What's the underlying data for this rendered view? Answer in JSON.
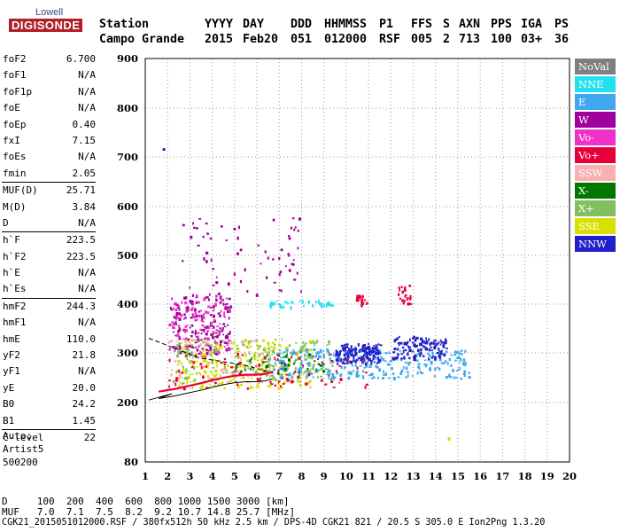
{
  "logo": {
    "top": "Lowell",
    "bottom": "DIGISONDE"
  },
  "header": {
    "row1": [
      "Station",
      "YYYY",
      "DAY",
      "DDD",
      "HHMMSS",
      "P1",
      "FFS",
      "S",
      "AXN",
      "PPS",
      "IGA",
      "PS"
    ],
    "row2": [
      "Campo Grande",
      "2015",
      "Feb20",
      "051",
      "012000",
      "RSF",
      "005",
      "2",
      "713",
      "100",
      "03+",
      "36"
    ]
  },
  "params": [
    {
      "k": "foF2",
      "v": "6.700"
    },
    {
      "k": "foF1",
      "v": "N/A"
    },
    {
      "k": "foF1p",
      "v": "N/A"
    },
    {
      "k": "foE",
      "v": "N/A"
    },
    {
      "k": "foEp",
      "v": "0.40"
    },
    {
      "k": "fxI",
      "v": "7.15"
    },
    {
      "k": "foEs",
      "v": "N/A"
    },
    {
      "k": "fmin",
      "v": "2.05"
    },
    {
      "k": "MUF(D)",
      "v": "25.71"
    },
    {
      "k": "M(D)",
      "v": "3.84"
    },
    {
      "k": "D",
      "v": "N/A"
    },
    {
      "k": "h`F",
      "v": "223.5"
    },
    {
      "k": "h`F2",
      "v": "223.5"
    },
    {
      "k": "h`E",
      "v": "N/A"
    },
    {
      "k": "h`Es",
      "v": "N/A"
    },
    {
      "k": "hmF2",
      "v": "244.3"
    },
    {
      "k": "hmF1",
      "v": "N/A"
    },
    {
      "k": "hmE",
      "v": "110.0"
    },
    {
      "k": "yF2",
      "v": "21.8"
    },
    {
      "k": "yF1",
      "v": "N/A"
    },
    {
      "k": "yE",
      "v": "20.0"
    },
    {
      "k": "B0",
      "v": "24.2"
    },
    {
      "k": "B1",
      "v": "1.45"
    },
    {
      "k": "C-level",
      "v": "22"
    }
  ],
  "auto": {
    "line1": "Auto:",
    "line2": "Artist5",
    "line3": "500200"
  },
  "footer": {
    "d_row": "D     100  200  400  600  800 1000 1500 3000 [km]",
    "muf_row": "MUF   7.0  7.1  7.5  8.2  9.2 10.7 14.8 25.7 [MHz]",
    "file_row": "CGK21_2015051012000.RSF / 380fx512h 50 kHz 2.5 km / DPS-4D CGK21 821 / 20.5 S 305.0 E Ion2Png 1.3.20"
  },
  "legend": [
    {
      "label": "NoVal",
      "color": "#7f7f7f"
    },
    {
      "label": "NNE",
      "color": "#22e0f0"
    },
    {
      "label": "E",
      "color": "#40a8f0"
    },
    {
      "label": "W",
      "color": "#a0009c"
    },
    {
      "label": "Vo-",
      "color": "#f030c8"
    },
    {
      "label": "Vo+",
      "color": "#e8003c"
    },
    {
      "label": "SSW",
      "color": "#f8b0b0"
    },
    {
      "label": "X-",
      "color": "#007800"
    },
    {
      "label": "X+",
      "color": "#80c060"
    },
    {
      "label": "SSE",
      "color": "#d8e000"
    },
    {
      "label": "NNW",
      "color": "#2020c8"
    }
  ],
  "chart_data": {
    "type": "scatter",
    "xlim": [
      1,
      20
    ],
    "ylim": [
      80,
      900
    ],
    "x_ticks": [
      "1",
      "2",
      "3",
      "4",
      "5",
      "6",
      "7",
      "8",
      "9",
      "10",
      "11",
      "12",
      "13",
      "14",
      "15",
      "16",
      "17",
      "18",
      "19",
      "20"
    ],
    "y_ticks": [
      "80",
      "200",
      "300",
      "400",
      "500",
      "600",
      "700",
      "800",
      "900"
    ],
    "grid": true,
    "trace": {
      "name": "",
      "x": [
        1.6,
        2.0,
        2.4,
        2.8,
        3.2,
        3.6,
        4.0,
        4.5,
        5.0,
        5.5,
        6.0,
        6.4,
        6.7
      ],
      "y": [
        222,
        225,
        228,
        232,
        236,
        240,
        245,
        250,
        254,
        256,
        256,
        258,
        262
      ]
    },
    "clusters": [
      {
        "series": "SSE",
        "x": [
          2.4,
          8.5
        ],
        "y": [
          230,
          330
        ],
        "n": 260
      },
      {
        "series": "W",
        "x": [
          2.0,
          4.8
        ],
        "y": [
          300,
          420
        ],
        "n": 180
      },
      {
        "series": "Vo-",
        "x": [
          2.0,
          4.8
        ],
        "y": [
          300,
          420
        ],
        "n": 90
      },
      {
        "series": "X+",
        "x": [
          2.2,
          9.5
        ],
        "y": [
          240,
          330
        ],
        "n": 150
      },
      {
        "series": "E",
        "x": [
          6.5,
          15.5
        ],
        "y": [
          250,
          310
        ],
        "n": 300
      },
      {
        "series": "NNW",
        "x": [
          9.5,
          11.5
        ],
        "y": [
          280,
          320
        ],
        "n": 150
      },
      {
        "series": "NNW",
        "x": [
          12.0,
          14.5
        ],
        "y": [
          290,
          335
        ],
        "n": 120
      },
      {
        "series": "NNE",
        "x": [
          6.5,
          9.5
        ],
        "y": [
          395,
          410
        ],
        "n": 40
      },
      {
        "series": "Vo+",
        "x": [
          2.0,
          11.0
        ],
        "y": [
          230,
          300
        ],
        "n": 90
      },
      {
        "series": "X-",
        "x": [
          5.0,
          9.0
        ],
        "y": [
          260,
          300
        ],
        "n": 40
      },
      {
        "series": "W",
        "x": [
          2.5,
          8.0
        ],
        "y": [
          420,
          580
        ],
        "n": 70
      },
      {
        "series": "SSW",
        "x": [
          2.0,
          6.5
        ],
        "y": [
          240,
          330
        ],
        "n": 60
      },
      {
        "series": "Vo+",
        "x": [
          10.4,
          10.9
        ],
        "y": [
          400,
          420
        ],
        "n": 20
      },
      {
        "series": "Vo+",
        "x": [
          12.3,
          12.9
        ],
        "y": [
          400,
          440
        ],
        "n": 25
      }
    ]
  }
}
